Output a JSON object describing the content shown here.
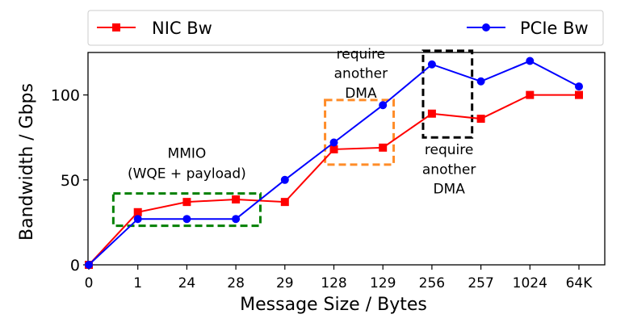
{
  "chart_data": {
    "type": "line",
    "xlabel": "Message Size / Bytes",
    "ylabel": "Bandwidth / Gbps",
    "categories": [
      "0",
      "1",
      "24",
      "28",
      "29",
      "128",
      "129",
      "256",
      "257",
      "1024",
      "64K"
    ],
    "ylim": [
      0,
      125
    ],
    "yticks": [
      0,
      50,
      100
    ],
    "grid": false,
    "legend_position": "top",
    "series": [
      {
        "name": "NIC Bw",
        "color": "#ff0000",
        "marker": "square",
        "values": [
          0,
          31,
          37,
          38.5,
          37,
          68,
          69,
          89,
          86,
          100,
          100
        ]
      },
      {
        "name": "PCIe Bw",
        "color": "#0000ff",
        "marker": "circle",
        "values": [
          0,
          27,
          27,
          27,
          50,
          72,
          94,
          118,
          108,
          120,
          105
        ]
      }
    ],
    "annotations": [
      {
        "lines": [
          "MMIO",
          "(WQE + payload)"
        ],
        "box_color": "#008000",
        "box_x": [
          0.5,
          3.5
        ],
        "box_y": [
          23,
          42
        ],
        "text_x": 2,
        "text_y": [
          63,
          51
        ]
      },
      {
        "lines": [
          "require",
          "another",
          "DMA"
        ],
        "box_color": "#ff8c28",
        "box_x": [
          4.82,
          6.22
        ],
        "box_y": [
          59,
          97
        ],
        "text_x": 5.55,
        "text_y": [
          121.5,
          110,
          98.5
        ]
      },
      {
        "lines": [
          "require",
          "another",
          "DMA"
        ],
        "box_color": "#000000",
        "box_x": [
          6.82,
          7.82
        ],
        "box_y": [
          75,
          126
        ],
        "text_x": 7.35,
        "text_y": [
          65,
          53.5,
          42
        ]
      }
    ]
  }
}
